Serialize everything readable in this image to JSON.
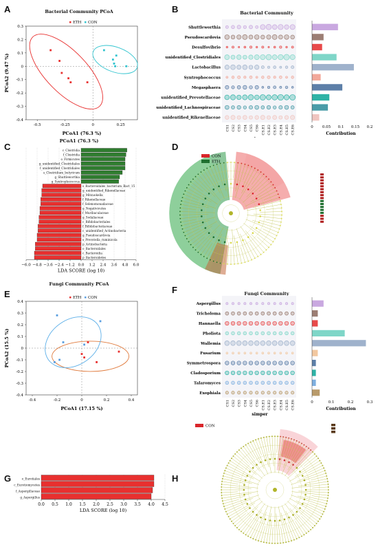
{
  "colors": {
    "red": "#e8302f",
    "cyan": "#31c4cf",
    "green": "#2f7d2f",
    "olive": "#b1b52a",
    "pink": "#e8a0a0"
  },
  "panelA": {
    "letter": "A",
    "title": "Bacterial Community PCoA",
    "legend": [
      "ETH",
      "CON"
    ],
    "xlabel": "PCoA1 (76.3 %)",
    "ylabel": "PCoA2 (9.47 %)"
  },
  "panelB": {
    "letter": "B",
    "title": "Bacterial Community",
    "taxa": [
      "Shuttleworthia",
      "Pseudoscardovia",
      "Desulfovibrio",
      "unidentified_Clostridiales",
      "Lactobacillus",
      "Syntrophococcus",
      "Megasphaera",
      "unidentified_Prevotellaceae",
      "unidentified_Lachnospiraceae",
      "unidentified_Rikenellaceae"
    ],
    "samples": [
      "CS1",
      "CS2",
      "CS3",
      "CS4",
      "CS5",
      "CS6",
      "CS.E1",
      "CS.E2",
      "CS.E3",
      "CS.E4",
      "CS.E5",
      "CS.E6"
    ],
    "xlabel": "simper",
    "contrib_label": "Contribution",
    "contrib_ticks": [
      "0",
      "0.05",
      "0.1",
      "0.15",
      "0.2"
    ]
  },
  "panelC": {
    "letter": "C",
    "title": "PCoA1 (76.3 %)",
    "xlabel": "LDA SCORE (log 10)",
    "ticks": [
      "−6.0",
      "−4.8",
      "−3.6",
      "−2.4",
      "−1.2",
      "0.0",
      "1.2",
      "2.4",
      "3.6",
      "4.8",
      "6.0"
    ]
  },
  "panelD": {
    "letter": "D",
    "legend": [
      "CON",
      "ETH"
    ]
  },
  "panelE": {
    "letter": "E",
    "title": "Fungi Community PCoA",
    "legend": [
      "ETH",
      "CON"
    ],
    "xlabel": "PCoA1 (17.15 %)",
    "ylabel": "PCoA2 (15.5 %)"
  },
  "panelF": {
    "letter": "F",
    "title": "Fungi Community",
    "taxa": [
      "Aspergillus",
      "Tricholoma",
      "Hannaella",
      "Pholiota",
      "Wallemia",
      "Fusarium",
      "Symmetrospora",
      "Cladosporium",
      "Talaromyces",
      "Exophiala"
    ],
    "samples": [
      "CS1",
      "CS2",
      "CS3",
      "CS4",
      "CS5",
      "CS6",
      "CS.E1",
      "CS.E2",
      "CS.E3",
      "CS.E4",
      "CS.E5",
      "CS.E6"
    ],
    "xlabel": "simper",
    "contrib_label": "Contribution",
    "contrib_ticks": [
      "0",
      "0.1",
      "0.2",
      "0.3"
    ]
  },
  "panelG": {
    "letter": "G",
    "xlabel": "LDA SCORE (log 10)",
    "ticks": [
      "0.0",
      "0.5",
      "1.0",
      "1.5",
      "2.0",
      "2.5",
      "3.0",
      "3.5",
      "4.0",
      "4.5"
    ]
  },
  "panelH": {
    "letter": "H",
    "legend": [
      "CON"
    ]
  },
  "chart_data": [
    {
      "type": "scatter",
      "panel": "A",
      "title": "Bacterial Community PCoA",
      "xlabel": "PCoA1 (76.3 %)",
      "ylabel": "PCoA2 (9.47 %)",
      "xlim": [
        -0.6,
        0.4
      ],
      "ylim": [
        -0.4,
        0.3
      ],
      "xticks": [
        "-0.5",
        "-0.25",
        "0",
        "0.25",
        "0.5"
      ],
      "yticks": [
        "-0.4",
        "-0.3",
        "-0.2",
        "-0.1",
        "0",
        "0.1",
        "0.2",
        "0.3"
      ],
      "series": [
        {
          "name": "ETH",
          "color": "#e8302f",
          "points": [
            [
              -0.38,
              0.12
            ],
            [
              -0.3,
              0.04
            ],
            [
              -0.28,
              -0.05
            ],
            [
              -0.22,
              -0.09
            ],
            [
              -0.2,
              -0.12
            ],
            [
              -0.05,
              -0.12
            ]
          ]
        },
        {
          "name": "CON",
          "color": "#31c4cf",
          "points": [
            [
              0.1,
              0.12
            ],
            [
              0.18,
              0.05
            ],
            [
              0.19,
              0.02
            ],
            [
              0.2,
              -0.0
            ],
            [
              0.21,
              0.08
            ],
            [
              0.3,
              0.0
            ]
          ]
        }
      ]
    },
    {
      "type": "bar",
      "panel": "B",
      "title": "Bacterial Community",
      "xlabel": "Contribution",
      "categories": [
        "Shuttleworthia",
        "Pseudoscardovia",
        "Desulfovibrio",
        "unidentified_Clostridiales",
        "Lactobacillus",
        "Syntrophococcus",
        "Megasphaera",
        "unidentified_Prevotellaceae",
        "unidentified_Lachnospiraceae",
        "unidentified_Rikenellaceae"
      ],
      "values": [
        0.09,
        0.04,
        0.035,
        0.085,
        0.145,
        0.03,
        0.105,
        0.06,
        0.055,
        0.025
      ],
      "bar_colors": [
        "#c9a8e0",
        "#9c7e74",
        "#e84a4a",
        "#7fd6c8",
        "#9fb2cc",
        "#f2a89a",
        "#5d7fa8",
        "#2fb3a6",
        "#4a9ca8",
        "#f0c5c0"
      ],
      "xlim": [
        0,
        0.2
      ]
    },
    {
      "type": "bar",
      "panel": "C",
      "title": "PCoA1 (76.3 %)",
      "xlabel": "LDA SCORE (log 10)",
      "xlim": [
        -6,
        6
      ],
      "series": [
        {
          "name": "ETH",
          "color": "#2f7d2f",
          "categories": [
            "c_Clostridia",
            "f_Clostridia",
            "o_Firmicutes",
            "g_unidentified_Clostridiales",
            "f_unidentified_Clostridiales",
            "s_Clostridium_butyricum",
            "g_Shuttleworthia",
            "g_Syntrophococcus"
          ],
          "values": [
            5.0,
            4.9,
            4.8,
            4.8,
            4.8,
            4.5,
            4.2,
            4.1
          ]
        },
        {
          "name": "CON",
          "color": "#e8302f",
          "categories": [
            "s_Bacteroidales_bacterium_Bact_15",
            "g_unidentified_Rikenellaceae",
            "g_Mitsuokella",
            "f_Rikenellaceae",
            "f_Selenomonadaceae",
            "g_Negativicutes",
            "f_Muribaculaceae",
            "g_Sodaliaceae",
            "c_Bifidobacteriales",
            "f_Bifidobacteriaceae",
            "c_unidentified_Actinobacteria",
            "g_Pseudoscardovia",
            "s_Prevotella_ruminicola",
            "p_Actinobacteria",
            "o_Bacteroidales",
            "c_Bacteroidia",
            "p_Bacteroidetes"
          ],
          "values": [
            -4.2,
            -4.3,
            -4.3,
            -4.4,
            -4.4,
            -4.5,
            -4.5,
            -4.6,
            -4.6,
            -4.7,
            -4.7,
            -4.8,
            -4.8,
            -5.0,
            -5.0,
            -5.1,
            -5.1
          ]
        }
      ]
    },
    {
      "type": "scatter",
      "panel": "E",
      "title": "Fungi Community PCoA",
      "xlabel": "PCoA1 (17.15 %)",
      "ylabel": "PCoA2 (15.5 %)",
      "xlim": [
        -0.45,
        0.45
      ],
      "ylim": [
        -0.4,
        0.4
      ],
      "xticks": [
        "-0.4",
        "-0.2",
        "0",
        "0.2",
        "0.4"
      ],
      "yticks": [
        "-0.4",
        "-0.3",
        "-0.2",
        "-0.1",
        "0",
        "0.1",
        "0.2",
        "0.3",
        "0.4"
      ],
      "series": [
        {
          "name": "ETH",
          "color": "#e8302f",
          "points": [
            [
              0.0,
              -0.05
            ],
            [
              0.02,
              -0.08
            ],
            [
              0.05,
              0.05
            ],
            [
              0.3,
              -0.03
            ],
            [
              0.12,
              -0.12
            ]
          ]
        },
        {
          "name": "CON",
          "color": "#5a9ee0",
          "points": [
            [
              -0.2,
              0.28
            ],
            [
              -0.15,
              0.05
            ],
            [
              -0.18,
              -0.1
            ],
            [
              -0.22,
              -0.12
            ],
            [
              0.02,
              0.03
            ],
            [
              0.15,
              0.23
            ]
          ]
        }
      ]
    },
    {
      "type": "bar",
      "panel": "F",
      "title": "Fungi Community",
      "xlabel": "Contribution",
      "categories": [
        "Aspergillus",
        "Tricholoma",
        "Hannaella",
        "Pholiota",
        "Wallemia",
        "Fusarium",
        "Symmetrospora",
        "Cladosporium",
        "Talaromyces",
        "Exophiala"
      ],
      "values": [
        0.06,
        0.03,
        0.03,
        0.17,
        0.28,
        0.03,
        0.02,
        0.02,
        0.02,
        0.04
      ],
      "bar_colors": [
        "#c9a8e0",
        "#9c7e74",
        "#e84a4a",
        "#7fd6c8",
        "#9fb2cc",
        "#f2c8a0",
        "#5d7fa8",
        "#2fb3a6",
        "#7fb0e0",
        "#b89a6a"
      ],
      "xlim": [
        0,
        0.3
      ]
    },
    {
      "type": "bar",
      "panel": "G",
      "xlabel": "LDA SCORE (log 10)",
      "xlim": [
        0,
        4.5
      ],
      "series": [
        {
          "name": "CON",
          "color": "#e8302f",
          "categories": [
            "o_Eurotiales",
            "c_Eurotiomycetes",
            "f_Aspergillaceae",
            "g_Aspergillus"
          ],
          "values": [
            4.1,
            4.1,
            4.05,
            4.0
          ]
        }
      ]
    }
  ]
}
